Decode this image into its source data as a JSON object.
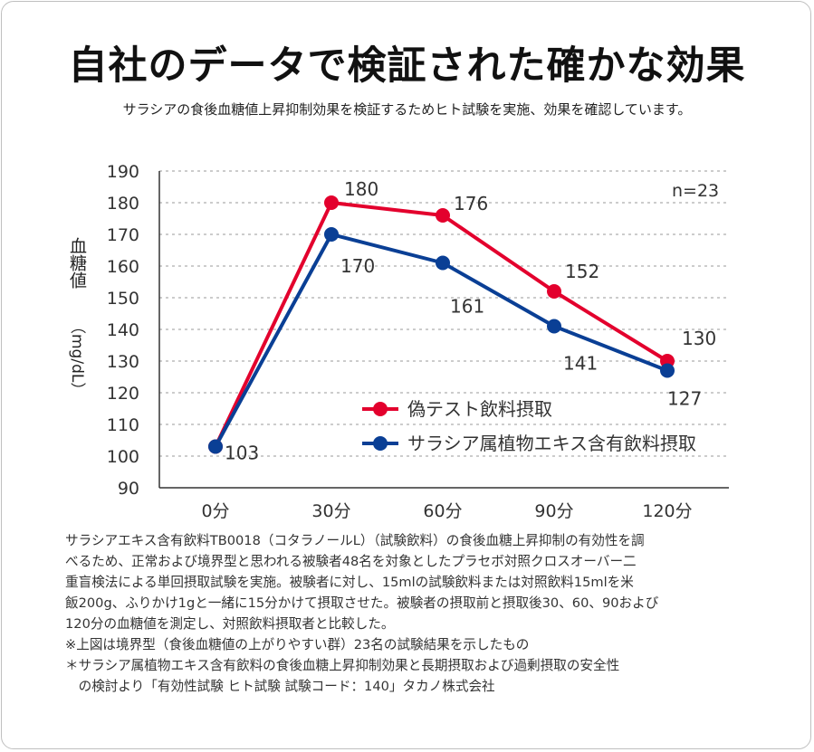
{
  "title": "自社のデータで検証された確かな効果",
  "subtitle": "サラシアの食後血糖値上昇抑制効果を検証するためヒト試験を実施、効果を確認しています。",
  "chart_data": {
    "type": "line",
    "categories": [
      "0分",
      "30分",
      "60分",
      "90分",
      "120分"
    ],
    "series": [
      {
        "name": "偽テスト飲料摂取",
        "values": [
          103,
          180,
          176,
          152,
          130
        ],
        "color": "#e3002d"
      },
      {
        "name": "サラシア属植物エキス含有飲料摂取",
        "values": [
          103,
          170,
          161,
          141,
          127
        ],
        "color": "#0a3f95"
      }
    ],
    "ylim": [
      90,
      190
    ],
    "yticks": [
      90,
      100,
      110,
      120,
      130,
      140,
      150,
      160,
      170,
      180,
      190
    ],
    "ylabel": "血糖値",
    "yunit": "（mg/dL）",
    "annotation": "n=23",
    "grid": true,
    "legend_position": "bottom-right"
  },
  "notes": [
    "サラシアエキス含有飲料TB0018（コタラノールL）（試験飲料）の食後血糖上昇抑制の有効性を調",
    "べるため、正常および境界型と思われる被験者48名を対象としたプラセボ対照クロスオーバー二",
    "重盲検法による単回摂取試験を実施。被験者に対し、15mlの試験飲料または対照飲料15mlを米",
    "飯200g、ふりかけ1gと一緒に15分かけて摂取させた。被験者の摂取前と摂取後30、60、90および",
    "120分の血糖値を測定し、対照飲料摂取者と比較した。",
    "※上図は境界型（食後血糖値の上がりやすい群）23名の試験結果を示したもの",
    "＊サラシア属植物エキス含有飲料の食後血糖上昇抑制効果と長期摂取および過剰摂取の安全性",
    "　の検討より「有効性試験 ヒト試験 試験コード：140」タカノ株式会社"
  ]
}
